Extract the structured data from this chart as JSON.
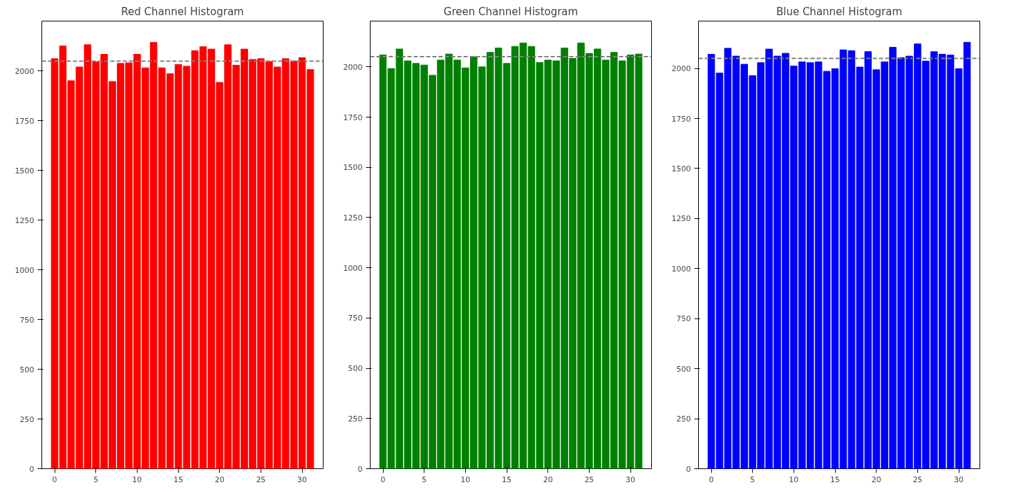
{
  "chart_data": [
    {
      "type": "bar",
      "title": "Red Channel Histogram",
      "x": [
        0,
        1,
        2,
        3,
        4,
        5,
        6,
        7,
        8,
        9,
        10,
        11,
        12,
        13,
        14,
        15,
        16,
        17,
        18,
        19,
        20,
        21,
        22,
        23,
        24,
        25,
        26,
        27,
        28,
        29,
        30,
        31
      ],
      "series": [
        {
          "color": "#ff0000",
          "values": [
            2061,
            2125,
            1950,
            2019,
            2131,
            2045,
            2083,
            1946,
            2037,
            2040,
            2083,
            2015,
            2143,
            2015,
            1985,
            2032,
            2023,
            2101,
            2121,
            2109,
            1942,
            2131,
            2028,
            2109,
            2057,
            2061,
            2047,
            2019,
            2061,
            2049,
            2066,
            2006
          ]
        }
      ],
      "xlim": [
        -1.55,
        32.55
      ],
      "ylim": [
        0,
        2250
      ],
      "xticks": [
        0,
        5,
        10,
        15,
        20,
        25,
        30
      ],
      "yticks": [
        0,
        250,
        500,
        750,
        1000,
        1250,
        1500,
        1750,
        2000
      ],
      "ref_lines": [
        {
          "axis": "y",
          "value": 2049,
          "label": null,
          "color": "#808080",
          "line_style": "dashed"
        }
      ],
      "grid": false
    },
    {
      "type": "bar",
      "title": "Green Channel Histogram",
      "x": [
        0,
        1,
        2,
        3,
        4,
        5,
        6,
        7,
        8,
        9,
        10,
        11,
        12,
        13,
        14,
        15,
        16,
        17,
        18,
        19,
        20,
        21,
        22,
        23,
        24,
        25,
        26,
        27,
        28,
        29,
        30,
        31
      ],
      "series": [
        {
          "color": "#008000",
          "values": [
            2059,
            1992,
            2089,
            2030,
            2017,
            2009,
            1958,
            2034,
            2064,
            2034,
            1995,
            2050,
            2000,
            2072,
            2094,
            2017,
            2102,
            2119,
            2102,
            2022,
            2034,
            2030,
            2094,
            2042,
            2119,
            2067,
            2089,
            2034,
            2072,
            2030,
            2059,
            2064
          ]
        }
      ],
      "xlim": [
        -1.55,
        32.55
      ],
      "ylim": [
        0,
        2228
      ],
      "xticks": [
        0,
        5,
        10,
        15,
        20,
        25,
        30
      ],
      "yticks": [
        0,
        250,
        500,
        750,
        1000,
        1250,
        1500,
        1750,
        2000
      ],
      "ref_lines": [
        {
          "axis": "y",
          "value": 2051,
          "label": null,
          "color": "#808080",
          "line_style": "dashed"
        }
      ],
      "grid": false
    },
    {
      "type": "bar",
      "title": "Blue Channel Histogram",
      "x": [
        0,
        1,
        2,
        3,
        4,
        5,
        6,
        7,
        8,
        9,
        10,
        11,
        12,
        13,
        14,
        15,
        16,
        17,
        18,
        19,
        20,
        21,
        22,
        23,
        24,
        25,
        26,
        27,
        28,
        29,
        30,
        31
      ],
      "series": [
        {
          "color": "#0000ff",
          "values": [
            2071,
            1977,
            2101,
            2062,
            2021,
            1964,
            2029,
            2097,
            2062,
            2076,
            2012,
            2033,
            2029,
            2033,
            1986,
            1999,
            2093,
            2089,
            2007,
            2084,
            1994,
            2033,
            2106,
            2054,
            2062,
            2123,
            2037,
            2084,
            2071,
            2067,
            1999,
            2131
          ]
        }
      ],
      "xlim": [
        -1.55,
        32.55
      ],
      "ylim": [
        0,
        2237
      ],
      "xticks": [
        0,
        5,
        10,
        15,
        20,
        25,
        30
      ],
      "yticks": [
        0,
        250,
        500,
        750,
        1000,
        1250,
        1500,
        1750,
        2000
      ],
      "ref_lines": [
        {
          "axis": "y",
          "value": 2051,
          "label": null,
          "color": "#808080",
          "line_style": "dashed"
        }
      ],
      "grid": false
    }
  ]
}
